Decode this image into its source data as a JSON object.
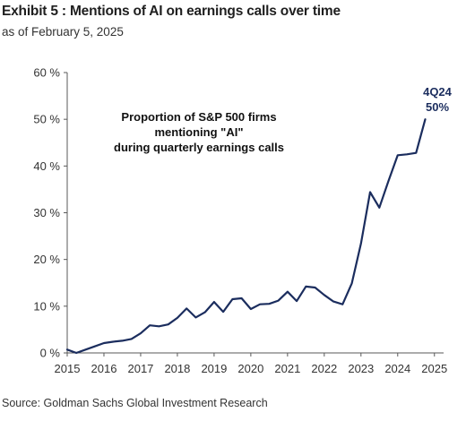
{
  "header": {
    "title": "Exhibit 5 : Mentions of AI on earnings calls over time",
    "subtitle": "as of February 5, 2025"
  },
  "footer": {
    "source": "Source: Goldman Sachs Global Investment Research"
  },
  "colors": {
    "line": "#1b2d5e",
    "axis": "#595959",
    "text": "#333333"
  },
  "chart_data": {
    "type": "line",
    "title": "",
    "xlabel": "",
    "ylabel": "",
    "xlim": [
      2015,
      2025.25
    ],
    "ylim": [
      0,
      60
    ],
    "grid": false,
    "legend": "none",
    "x_ticks": [
      2015,
      2016,
      2017,
      2018,
      2019,
      2020,
      2021,
      2022,
      2023,
      2024,
      2025
    ],
    "y_ticks": [
      0,
      10,
      20,
      30,
      40,
      50,
      60
    ],
    "y_tick_labels": [
      "0 %",
      "10 %",
      "20 %",
      "30 %",
      "40 %",
      "50 %",
      "60 %"
    ],
    "series": [
      {
        "x": [
          2015.0,
          2015.25,
          2015.5,
          2015.75,
          2016.0,
          2016.25,
          2016.5,
          2016.75,
          2017.0,
          2017.25,
          2017.5,
          2017.75,
          2018.0,
          2018.25,
          2018.5,
          2018.75,
          2019.0,
          2019.25,
          2019.5,
          2019.75,
          2020.0,
          2020.25,
          2020.5,
          2020.75,
          2021.0,
          2021.25,
          2021.5,
          2021.75,
          2022.0,
          2022.25,
          2022.5,
          2022.75,
          2023.0,
          2023.25,
          2023.5,
          2023.75,
          2024.0,
          2024.25,
          2024.5,
          2024.75
        ],
        "values": [
          0.7,
          0.0,
          0.7,
          1.4,
          2.1,
          2.4,
          2.6,
          3.0,
          4.2,
          5.9,
          5.7,
          6.1,
          7.5,
          9.5,
          7.6,
          8.7,
          10.9,
          8.8,
          11.5,
          11.7,
          9.4,
          10.4,
          10.5,
          11.2,
          13.1,
          11.1,
          14.2,
          14.0,
          12.4,
          11.0,
          10.4,
          14.9,
          23.4,
          34.4,
          31.1,
          36.8,
          42.3,
          42.5,
          42.8,
          50.0
        ]
      }
    ],
    "annotation": {
      "lines": [
        "Proportion of S&P 500 firms",
        "mentioning \"AI\"",
        "during quarterly earnings calls"
      ]
    },
    "end_label": {
      "period": "4Q24",
      "value": "50%"
    }
  }
}
